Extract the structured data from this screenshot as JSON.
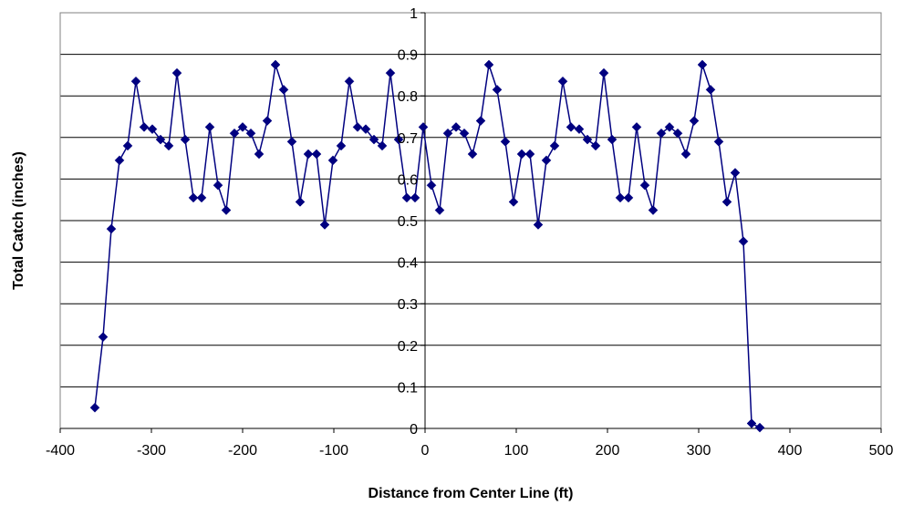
{
  "chart_data": {
    "type": "scatter",
    "title": "",
    "xlabel": "Distance from Center Line (ft)",
    "ylabel": "Total Catch (inches)",
    "xlim": [
      -400,
      500
    ],
    "ylim": [
      0,
      1
    ],
    "x_ticks": [
      -400,
      -300,
      -200,
      -100,
      0,
      100,
      200,
      300,
      400,
      500
    ],
    "y_ticks": [
      0,
      0.1,
      0.2,
      0.3,
      0.4,
      0.5,
      0.6,
      0.7,
      0.8,
      0.9,
      1
    ],
    "grid": "horizontal",
    "legend": "none",
    "series": [
      {
        "color": "#000080",
        "marker": "diamond",
        "line": true,
        "points": [
          [
            -362,
            0.05
          ],
          [
            -353,
            0.22
          ],
          [
            -344,
            0.48
          ],
          [
            -335,
            0.645
          ],
          [
            -326,
            0.68
          ],
          [
            -317,
            0.835
          ],
          [
            -308,
            0.725
          ],
          [
            -299,
            0.72
          ],
          [
            -290,
            0.695
          ],
          [
            -281,
            0.68
          ],
          [
            -272,
            0.855
          ],
          [
            -263,
            0.695
          ],
          [
            -254,
            0.555
          ],
          [
            -245,
            0.555
          ],
          [
            -236,
            0.725
          ],
          [
            -227,
            0.585
          ],
          [
            -218,
            0.525
          ],
          [
            -209,
            0.71
          ],
          [
            -200,
            0.725
          ],
          [
            -191,
            0.71
          ],
          [
            -182,
            0.66
          ],
          [
            -173,
            0.74
          ],
          [
            -164,
            0.875
          ],
          [
            -155,
            0.815
          ],
          [
            -146,
            0.69
          ],
          [
            -137,
            0.545
          ],
          [
            -128,
            0.66
          ],
          [
            -119,
            0.66
          ],
          [
            -110,
            0.49
          ],
          [
            -101,
            0.645
          ],
          [
            -92,
            0.68
          ],
          [
            -83,
            0.835
          ],
          [
            -74,
            0.725
          ],
          [
            -65,
            0.72
          ],
          [
            -56,
            0.695
          ],
          [
            -47,
            0.68
          ],
          [
            -38,
            0.855
          ],
          [
            -29,
            0.695
          ],
          [
            -20,
            0.555
          ],
          [
            -11,
            0.555
          ],
          [
            -2,
            0.725
          ],
          [
            7,
            0.585
          ],
          [
            16,
            0.525
          ],
          [
            25,
            0.71
          ],
          [
            34,
            0.725
          ],
          [
            43,
            0.71
          ],
          [
            52,
            0.66
          ],
          [
            61,
            0.74
          ],
          [
            70,
            0.875
          ],
          [
            79,
            0.815
          ],
          [
            88,
            0.69
          ],
          [
            97,
            0.545
          ],
          [
            106,
            0.66
          ],
          [
            115,
            0.66
          ],
          [
            124,
            0.49
          ],
          [
            133,
            0.645
          ],
          [
            142,
            0.68
          ],
          [
            151,
            0.835
          ],
          [
            160,
            0.725
          ],
          [
            169,
            0.72
          ],
          [
            178,
            0.695
          ],
          [
            187,
            0.68
          ],
          [
            196,
            0.855
          ],
          [
            205,
            0.695
          ],
          [
            214,
            0.555
          ],
          [
            223,
            0.555
          ],
          [
            232,
            0.725
          ],
          [
            241,
            0.585
          ],
          [
            250,
            0.525
          ],
          [
            259,
            0.71
          ],
          [
            268,
            0.725
          ],
          [
            277,
            0.71
          ],
          [
            286,
            0.66
          ],
          [
            295,
            0.74
          ],
          [
            304,
            0.875
          ],
          [
            313,
            0.815
          ],
          [
            322,
            0.69
          ],
          [
            331,
            0.545
          ],
          [
            340,
            0.615
          ],
          [
            349,
            0.45
          ],
          [
            358,
            0.012
          ],
          [
            367,
            0.002
          ]
        ]
      }
    ]
  }
}
